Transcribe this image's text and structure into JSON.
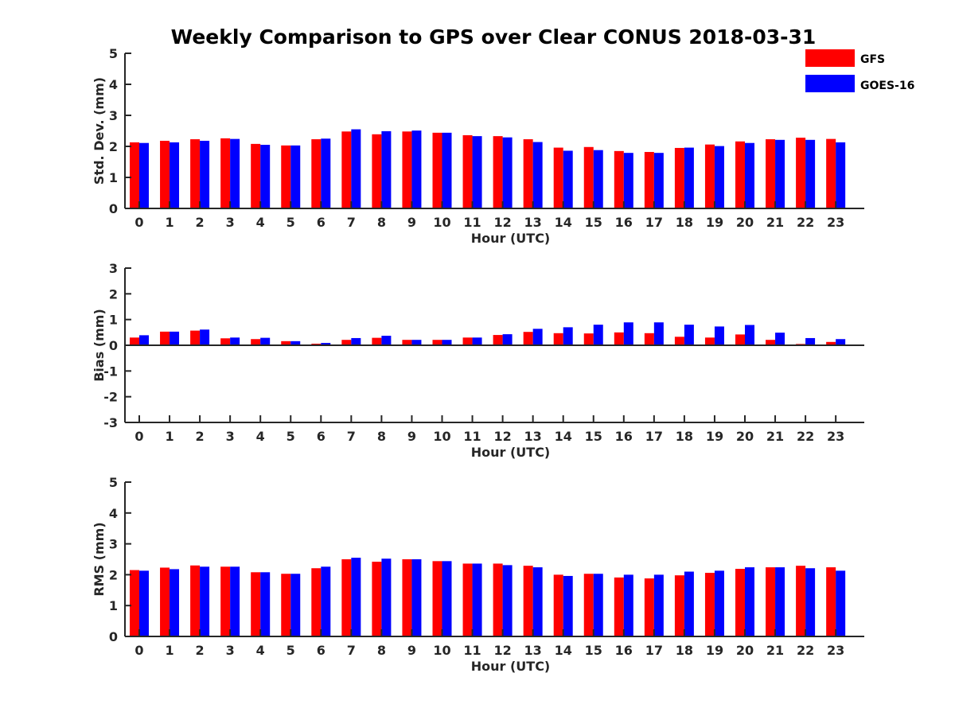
{
  "title": "Weekly Comparison to GPS over Clear CONUS 2018-03-31",
  "colors": {
    "GFS": "#ff0000",
    "GOES-16": "#0000ff"
  },
  "legend": [
    "GFS",
    "GOES-16"
  ],
  "chart_data": [
    {
      "type": "bar",
      "ylabel": "Std. Dev. (mm)",
      "xlabel": "Hour (UTC)",
      "ylim": [
        0,
        5
      ],
      "yticks": [
        0,
        1,
        2,
        3,
        4,
        5
      ],
      "categories": [
        "0",
        "1",
        "2",
        "3",
        "4",
        "5",
        "6",
        "7",
        "8",
        "9",
        "10",
        "11",
        "12",
        "13",
        "14",
        "15",
        "16",
        "17",
        "18",
        "19",
        "20",
        "21",
        "22",
        "23"
      ],
      "series": [
        {
          "name": "GFS",
          "values": [
            2.13,
            2.18,
            2.23,
            2.26,
            2.08,
            2.03,
            2.23,
            2.48,
            2.39,
            2.48,
            2.44,
            2.36,
            2.33,
            2.23,
            1.96,
            1.98,
            1.85,
            1.82,
            1.95,
            2.06,
            2.16,
            2.23,
            2.28,
            2.24
          ]
        },
        {
          "name": "GOES-16",
          "values": [
            2.11,
            2.13,
            2.18,
            2.24,
            2.05,
            2.03,
            2.25,
            2.55,
            2.49,
            2.51,
            2.44,
            2.33,
            2.29,
            2.14,
            1.86,
            1.88,
            1.79,
            1.79,
            1.96,
            2.01,
            2.11,
            2.21,
            2.21,
            2.13
          ]
        }
      ]
    },
    {
      "type": "bar",
      "ylabel": "Bias (mm)",
      "xlabel": "Hour (UTC)",
      "ylim": [
        -3,
        3
      ],
      "yticks": [
        -3,
        -2,
        -1,
        0,
        1,
        2,
        3
      ],
      "categories": [
        "0",
        "1",
        "2",
        "3",
        "4",
        "5",
        "6",
        "7",
        "8",
        "9",
        "10",
        "11",
        "12",
        "13",
        "14",
        "15",
        "16",
        "17",
        "18",
        "19",
        "20",
        "21",
        "22",
        "23"
      ],
      "series": [
        {
          "name": "GFS",
          "values": [
            0.3,
            0.53,
            0.57,
            0.27,
            0.24,
            0.16,
            0.06,
            0.21,
            0.29,
            0.21,
            0.21,
            0.3,
            0.4,
            0.52,
            0.47,
            0.46,
            0.5,
            0.47,
            0.33,
            0.3,
            0.42,
            0.21,
            0.05,
            0.13
          ]
        },
        {
          "name": "GOES-16",
          "values": [
            0.39,
            0.53,
            0.61,
            0.3,
            0.29,
            0.16,
            0.09,
            0.28,
            0.37,
            0.21,
            0.21,
            0.3,
            0.43,
            0.64,
            0.7,
            0.8,
            0.89,
            0.89,
            0.8,
            0.73,
            0.79,
            0.49,
            0.28,
            0.24
          ]
        }
      ]
    },
    {
      "type": "bar",
      "ylabel": "RMS (mm)",
      "xlabel": "Hour (UTC)",
      "ylim": [
        0,
        5
      ],
      "yticks": [
        0,
        1,
        2,
        3,
        4,
        5
      ],
      "categories": [
        "0",
        "1",
        "2",
        "3",
        "4",
        "5",
        "6",
        "7",
        "8",
        "9",
        "10",
        "11",
        "12",
        "13",
        "14",
        "15",
        "16",
        "17",
        "18",
        "19",
        "20",
        "21",
        "22",
        "23"
      ],
      "series": [
        {
          "name": "GFS",
          "values": [
            2.15,
            2.23,
            2.3,
            2.26,
            2.08,
            2.03,
            2.21,
            2.5,
            2.42,
            2.5,
            2.44,
            2.36,
            2.36,
            2.29,
            2.0,
            2.03,
            1.91,
            1.88,
            1.98,
            2.06,
            2.19,
            2.24,
            2.29,
            2.24
          ]
        },
        {
          "name": "GOES-16",
          "values": [
            2.13,
            2.18,
            2.26,
            2.26,
            2.08,
            2.03,
            2.26,
            2.55,
            2.52,
            2.5,
            2.44,
            2.36,
            2.31,
            2.24,
            1.96,
            2.03,
            2.0,
            2.0,
            2.1,
            2.13,
            2.24,
            2.24,
            2.21,
            2.13
          ]
        }
      ]
    }
  ]
}
